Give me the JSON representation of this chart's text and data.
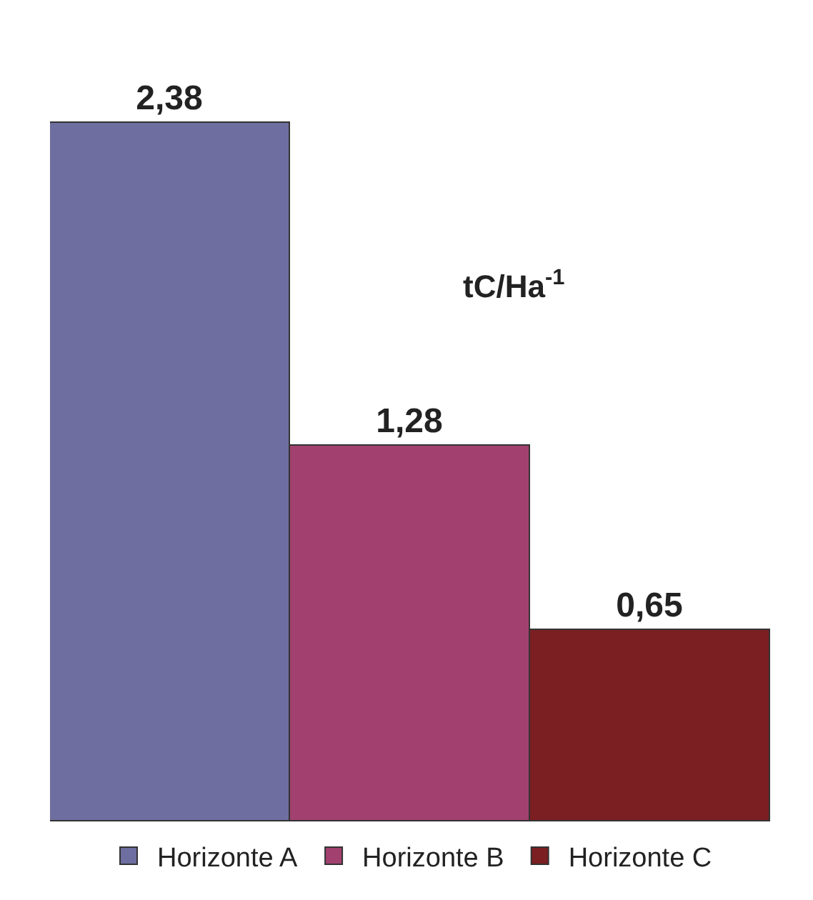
{
  "chart_data": {
    "type": "bar",
    "categories": [
      null
    ],
    "series": [
      {
        "name": "Horizonte A",
        "color": "#6e6ea0",
        "values": [
          2.38
        ],
        "value_labels": [
          "2,38"
        ]
      },
      {
        "name": "Horizonte B",
        "color": "#a2416f",
        "values": [
          1.28
        ],
        "value_labels": [
          "1,28"
        ]
      },
      {
        "name": "Horizonte C",
        "color": "#7b1f22",
        "values": [
          0.65
        ],
        "value_labels": [
          "0,65"
        ]
      }
    ],
    "annotations": [
      "tC/Ha$^{-1}$"
    ],
    "legend": "bottom",
    "tick_labels": false
  }
}
